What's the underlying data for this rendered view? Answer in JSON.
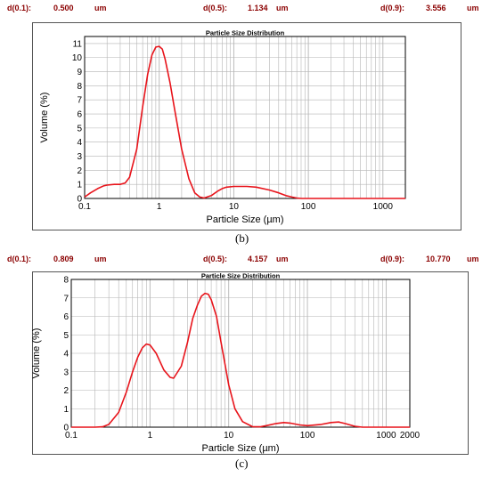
{
  "panels": [
    {
      "id": "b",
      "stats": {
        "d10_label": "d(0.1):",
        "d10_value": "0.500",
        "d10_unit": "um",
        "d50_label": "d(0.5):",
        "d50_value": "1.134",
        "d50_unit": "um",
        "d90_label": "d(0.9):",
        "d90_value": "3.556",
        "d90_unit": "um"
      },
      "caption": "(b)"
    },
    {
      "id": "c",
      "stats": {
        "d10_label": "d(0.1):",
        "d10_value": "0.809",
        "d10_unit": "um",
        "d50_label": "d(0.5):",
        "d50_value": "4.157",
        "d50_unit": "um",
        "d90_label": "d(0.9):",
        "d90_value": "10.770",
        "d90_unit": "um"
      },
      "caption": "(c)"
    }
  ],
  "colors": {
    "curve": "#e8141b",
    "grid": "#b5b5b5",
    "stat_text": "#8b0000"
  },
  "chart_data": [
    {
      "type": "line",
      "title": "Particle Size Distribution",
      "xlabel": "Particle Size (µm)",
      "ylabel": "Volume (%)",
      "x_scale": "log",
      "xlim": [
        0.1,
        2000
      ],
      "ylim": [
        0,
        11.5
      ],
      "x_ticks": [
        0.1,
        1,
        10,
        100,
        1000
      ],
      "x_tick_labels": [
        "0.1",
        "1",
        "10",
        "100",
        "1000"
      ],
      "y_ticks": [
        0,
        1,
        2,
        3,
        4,
        5,
        6,
        7,
        8,
        9,
        10,
        11
      ],
      "y_tick_labels": [
        "0",
        "1",
        "2",
        "3",
        "4",
        "5",
        "6",
        "7",
        "8",
        "9",
        "10",
        "11"
      ],
      "grid": true,
      "series": [
        {
          "x": [
            0.1,
            0.12,
            0.15,
            0.18,
            0.2,
            0.25,
            0.3,
            0.35,
            0.4,
            0.5,
            0.6,
            0.7,
            0.8,
            0.9,
            1.0,
            1.1,
            1.2,
            1.4,
            1.6,
            2.0,
            2.5,
            3.0,
            3.5,
            4.0,
            5.0,
            6.0,
            7.0,
            8.0,
            10,
            15,
            20,
            30,
            40,
            50,
            60,
            70,
            80,
            100,
            1000,
            2000
          ],
          "y": [
            0.1,
            0.4,
            0.7,
            0.9,
            0.95,
            1.0,
            1.0,
            1.1,
            1.5,
            3.5,
            6.5,
            8.8,
            10.2,
            10.75,
            10.8,
            10.6,
            9.9,
            8.2,
            6.4,
            3.5,
            1.4,
            0.4,
            0.1,
            0.03,
            0.2,
            0.5,
            0.7,
            0.8,
            0.85,
            0.85,
            0.8,
            0.6,
            0.4,
            0.2,
            0.1,
            0.03,
            0.0,
            0.0,
            0.0,
            0.0
          ]
        }
      ]
    },
    {
      "type": "line",
      "title": "Particle Size Distribution",
      "xlabel": "Particle Size (µm)",
      "ylabel": "Volume (%)",
      "x_scale": "log",
      "xlim": [
        0.1,
        2000
      ],
      "ylim": [
        0,
        8
      ],
      "x_ticks": [
        0.1,
        1,
        10,
        100,
        1000,
        2000
      ],
      "x_tick_labels": [
        "0.1",
        "1",
        "10",
        "100",
        "1000",
        "2000"
      ],
      "y_ticks": [
        0,
        1,
        2,
        3,
        4,
        5,
        6,
        7,
        8
      ],
      "y_tick_labels": [
        "0",
        "1",
        "2",
        "3",
        "4",
        "5",
        "6",
        "7",
        "8"
      ],
      "grid": true,
      "series": [
        {
          "x": [
            0.1,
            0.15,
            0.2,
            0.25,
            0.3,
            0.4,
            0.5,
            0.6,
            0.7,
            0.8,
            0.9,
            1.0,
            1.2,
            1.5,
            1.8,
            2.0,
            2.5,
            3.0,
            3.5,
            4.0,
            4.5,
            5.0,
            5.5,
            6.0,
            7.0,
            8.0,
            10,
            12,
            15,
            20,
            25,
            30,
            40,
            50,
            60,
            80,
            100,
            150,
            200,
            250,
            300,
            400,
            500,
            1000,
            2000
          ],
          "y": [
            0,
            0,
            0,
            0.02,
            0.15,
            0.8,
            1.9,
            3.0,
            3.8,
            4.3,
            4.5,
            4.45,
            4.0,
            3.1,
            2.7,
            2.65,
            3.3,
            4.6,
            5.9,
            6.6,
            7.1,
            7.25,
            7.2,
            6.9,
            6.0,
            4.6,
            2.3,
            1.0,
            0.3,
            0.03,
            0.02,
            0.08,
            0.2,
            0.25,
            0.22,
            0.12,
            0.08,
            0.15,
            0.25,
            0.28,
            0.2,
            0.05,
            0.0,
            0.0,
            0.0
          ]
        }
      ]
    }
  ]
}
